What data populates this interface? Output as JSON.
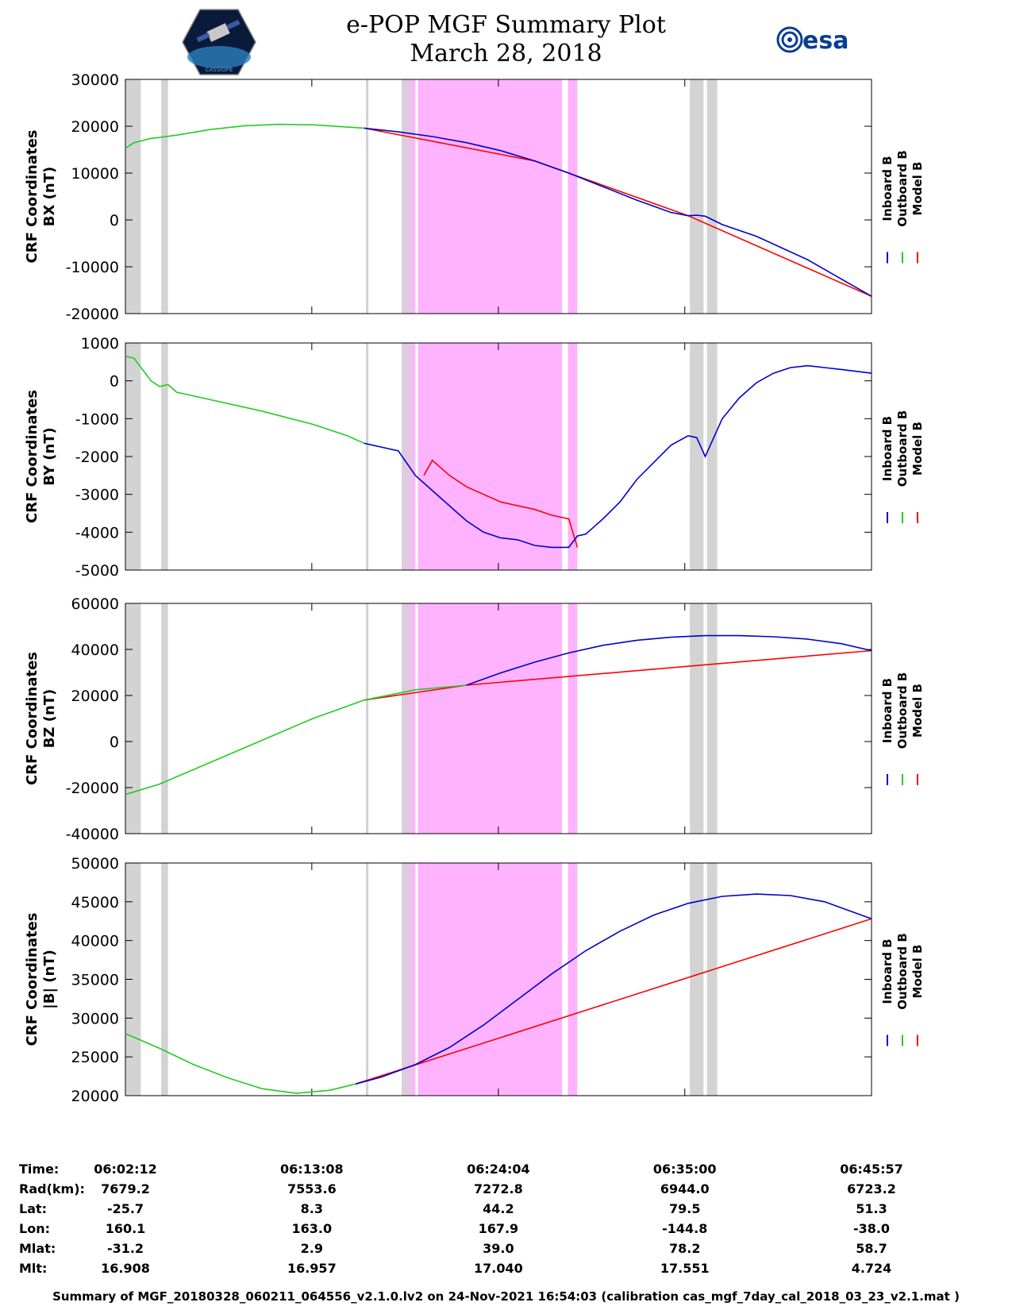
{
  "header": {
    "title": "e-POP MGF Summary Plot",
    "date": "March 28, 2018",
    "logo_left_text": "CASSIOPE",
    "logo_right_text": "esa"
  },
  "legend": {
    "labels": [
      "Inboard B",
      "Outboard B",
      "Model B"
    ],
    "colors": [
      "#0000cc",
      "#22cc22",
      "#ff0000"
    ]
  },
  "colors": {
    "gap_gray": "#d3d3d3",
    "highlight_magenta": "#ffb3ff"
  },
  "chart_data": [
    {
      "type": "line",
      "ylabel_line1": "CRF Coordinates",
      "ylabel_line2": "BX (nT)",
      "ylim": [
        -20000,
        30000
      ],
      "yticks": [
        -20000,
        -10000,
        0,
        10000,
        20000,
        30000
      ],
      "series": [
        {
          "name": "Outboard B",
          "x": [
            0,
            0.5,
            1.5,
            2,
            3,
            5,
            7,
            9,
            11,
            14
          ],
          "y": [
            15300,
            16500,
            17400,
            17600,
            18100,
            19300,
            20100,
            20400,
            20300,
            19600
          ]
        },
        {
          "name": "Inboard B",
          "x": [
            14,
            16,
            18,
            20,
            22,
            24,
            26,
            28,
            30,
            32,
            33,
            33.5,
            34,
            35,
            37,
            40,
            43.75
          ],
          "y": [
            19600,
            18800,
            17800,
            16500,
            14800,
            12600,
            10000,
            7100,
            4200,
            1600,
            900,
            1000,
            800,
            -1000,
            -3500,
            -8500,
            -16300
          ]
        },
        {
          "name": "Model B",
          "x": [
            14,
            24,
            33,
            43.75
          ],
          "y": [
            19600,
            12600,
            900,
            -16300
          ]
        }
      ]
    },
    {
      "type": "line",
      "ylabel_line1": "CRF Coordinates",
      "ylabel_line2": "BY (nT)",
      "ylim": [
        -5000,
        1000
      ],
      "yticks": [
        -5000,
        -4000,
        -3000,
        -2000,
        -1000,
        0,
        1000
      ],
      "series": [
        {
          "name": "Outboard B",
          "x": [
            0,
            0.5,
            1,
            1.5,
            2,
            2.5,
            3,
            5,
            8,
            11,
            13,
            14
          ],
          "y": [
            650,
            600,
            300,
            0,
            -150,
            -100,
            -300,
            -500,
            -800,
            -1150,
            -1450,
            -1650
          ]
        },
        {
          "name": "Inboard B",
          "x": [
            14,
            15,
            16,
            17,
            18,
            19,
            20,
            21,
            22,
            23,
            24,
            25,
            26,
            26.5,
            27,
            28,
            29,
            30,
            31,
            32,
            33,
            33.5,
            34,
            35,
            36,
            37,
            38,
            39,
            40,
            41,
            42,
            43.75
          ],
          "y": [
            -1650,
            -1750,
            -1850,
            -2500,
            -2900,
            -3300,
            -3700,
            -4000,
            -4150,
            -4200,
            -4350,
            -4400,
            -4400,
            -4100,
            -4050,
            -3650,
            -3200,
            -2600,
            -2150,
            -1700,
            -1450,
            -1500,
            -2000,
            -1000,
            -450,
            -50,
            200,
            350,
            400,
            350,
            300,
            200
          ]
        },
        {
          "name": "Model B",
          "x": [
            17.5,
            18,
            19,
            20,
            22,
            24,
            25,
            26,
            26.5
          ],
          "y": [
            -2500,
            -2100,
            -2500,
            -2800,
            -3200,
            -3400,
            -3550,
            -3650,
            -4400
          ]
        }
      ]
    },
    {
      "type": "line",
      "ylabel_line1": "CRF Coordinates",
      "ylabel_line2": "BZ (nT)",
      "ylim": [
        -40000,
        60000
      ],
      "yticks": [
        -40000,
        -20000,
        0,
        20000,
        40000,
        60000
      ],
      "series": [
        {
          "name": "Outboard B",
          "x": [
            0,
            2,
            5,
            8,
            11,
            14,
            17,
            20
          ],
          "y": [
            -23000,
            -18500,
            -9000,
            500,
            10000,
            18000,
            22500,
            24500
          ]
        },
        {
          "name": "Inboard B",
          "x": [
            20,
            22,
            24,
            26,
            28,
            30,
            32,
            34,
            36,
            38,
            40,
            42,
            43.75
          ],
          "y": [
            24500,
            29800,
            34500,
            38500,
            41800,
            44000,
            45300,
            46000,
            46000,
            45500,
            44500,
            42500,
            39500
          ]
        },
        {
          "name": "Model B",
          "x": [
            14,
            20,
            43.75
          ],
          "y": [
            18000,
            24500,
            39500
          ]
        }
      ]
    },
    {
      "type": "line",
      "ylabel_line1": "CRF Coordinates",
      "ylabel_line2": "|B| (nT)",
      "ylim": [
        20000,
        50000
      ],
      "yticks": [
        20000,
        25000,
        30000,
        35000,
        40000,
        45000,
        50000
      ],
      "series": [
        {
          "name": "Outboard B",
          "x": [
            0,
            2,
            4,
            6,
            8,
            10,
            12,
            13.5
          ],
          "y": [
            28000,
            26100,
            24000,
            22300,
            20900,
            20300,
            20700,
            21500
          ]
        },
        {
          "name": "Inboard B",
          "x": [
            13.5,
            15,
            17,
            19,
            21,
            23,
            25,
            27,
            29,
            31,
            33,
            35,
            37,
            39,
            41,
            43.75
          ],
          "y": [
            21500,
            22400,
            24000,
            26200,
            29100,
            32400,
            35700,
            38700,
            41200,
            43300,
            44800,
            45700,
            46000,
            45800,
            45000,
            42800
          ]
        },
        {
          "name": "Model B",
          "x": [
            13.5,
            43.75
          ],
          "y": [
            21500,
            42800
          ]
        }
      ]
    }
  ],
  "time_axis": {
    "range_minutes": [
      0,
      43.75
    ],
    "major_ticks": [
      0,
      10.93,
      21.87,
      32.8,
      43.75
    ]
  },
  "gray_bands_minutes": [
    [
      0,
      0.9
    ],
    [
      2.1,
      2.5
    ],
    [
      14.1,
      14.25
    ],
    [
      16.2,
      17.0
    ],
    [
      33.1,
      33.9
    ],
    [
      34.1,
      34.7
    ]
  ],
  "magenta_bands_minutes": [
    [
      16.4,
      16.5
    ],
    [
      16.65,
      16.75
    ],
    [
      16.85,
      17.0
    ],
    [
      17.15,
      25.6
    ],
    [
      25.95,
      26.5
    ]
  ],
  "info_table": {
    "labels": [
      "Time:",
      "Rad(km):",
      "Lat:",
      "Lon:",
      "Mlat:",
      "Mlt:"
    ],
    "columns": [
      [
        "06:02:12",
        "7679.2",
        "-25.7",
        "160.1",
        "-31.2",
        "16.908"
      ],
      [
        "06:13:08",
        "7553.6",
        "8.3",
        "163.0",
        "2.9",
        "16.957"
      ],
      [
        "06:24:04",
        "7272.8",
        "44.2",
        "167.9",
        "39.0",
        "17.040"
      ],
      [
        "06:35:00",
        "6944.0",
        "79.5",
        "-144.8",
        "78.2",
        "17.551"
      ],
      [
        "06:45:57",
        "6723.2",
        "51.3",
        "-38.0",
        "58.7",
        "4.724"
      ]
    ]
  },
  "footer": "Summary of MGF_20180328_060211_064556_v2.1.0.lv2 on 24-Nov-2021 16:54:03 (calibration cas_mgf_7day_cal_2018_03_23_v2.1.mat )"
}
